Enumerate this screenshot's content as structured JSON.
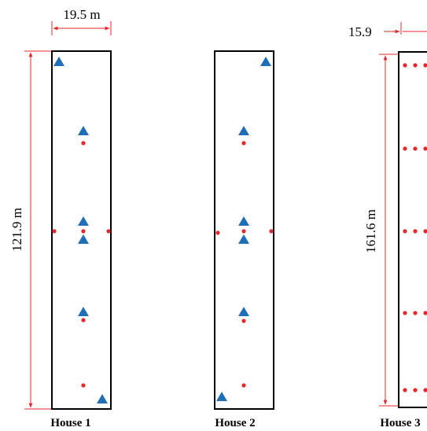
{
  "figure": {
    "colors": {
      "outline": "#000000",
      "dimension": "#e8262a",
      "sensor_dot": "#e8262a",
      "triangle_marker": "#1f6fb8"
    },
    "houses": [
      {
        "label": "House 1",
        "width_label": "19.5 m",
        "length_label": "121.9 m",
        "marker_types": [
          "triangle",
          "dot"
        ]
      },
      {
        "label": "House 2",
        "marker_types": [
          "triangle",
          "dot"
        ]
      },
      {
        "label": "House 3",
        "width_label": "15.9",
        "length_label": "161.6 m",
        "marker_types": [
          "dot"
        ]
      }
    ]
  }
}
